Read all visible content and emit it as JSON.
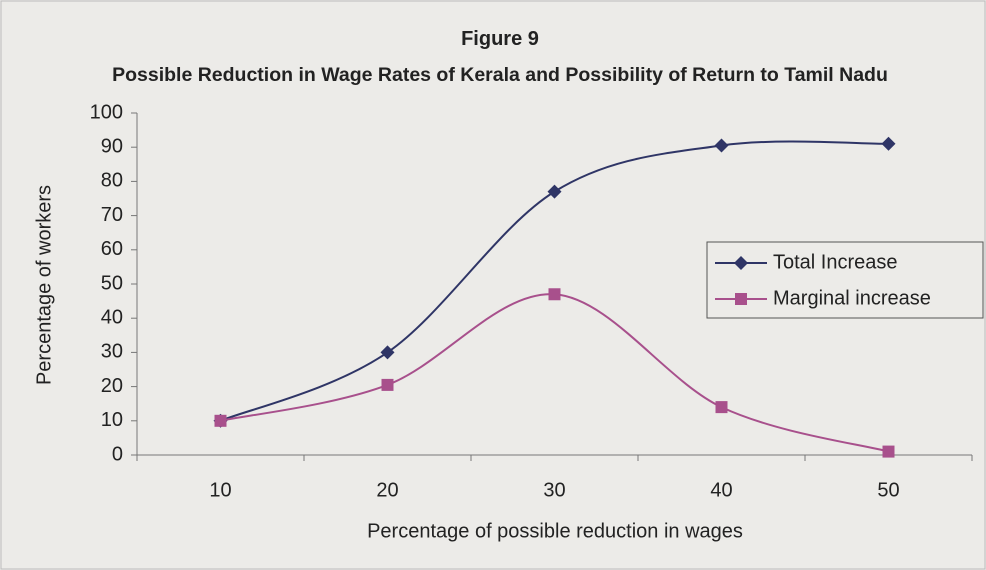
{
  "chart_data": {
    "type": "line",
    "title": "Figure 9",
    "subtitle": "Possible Reduction in Wage Rates of Kerala and Possibility of Return to Tamil Nadu",
    "x_label": "Percentage of possible reduction in wages",
    "y_label": "Percentage of workers",
    "categories": [
      "10",
      "20",
      "30",
      "40",
      "50"
    ],
    "series": [
      {
        "name": "Total Increase",
        "color": "#2f3566",
        "marker": "diamond",
        "values": [
          10,
          30,
          77,
          90.5,
          91
        ]
      },
      {
        "name": "Marginal increase",
        "color": "#a8508c",
        "marker": "square",
        "values": [
          10,
          20.5,
          47,
          14,
          1
        ]
      }
    ],
    "ylim": [
      0,
      100
    ],
    "yticks": [
      0,
      10,
      20,
      30,
      40,
      50,
      60,
      70,
      80,
      90,
      100
    ],
    "smooth": true,
    "legend": "right"
  }
}
